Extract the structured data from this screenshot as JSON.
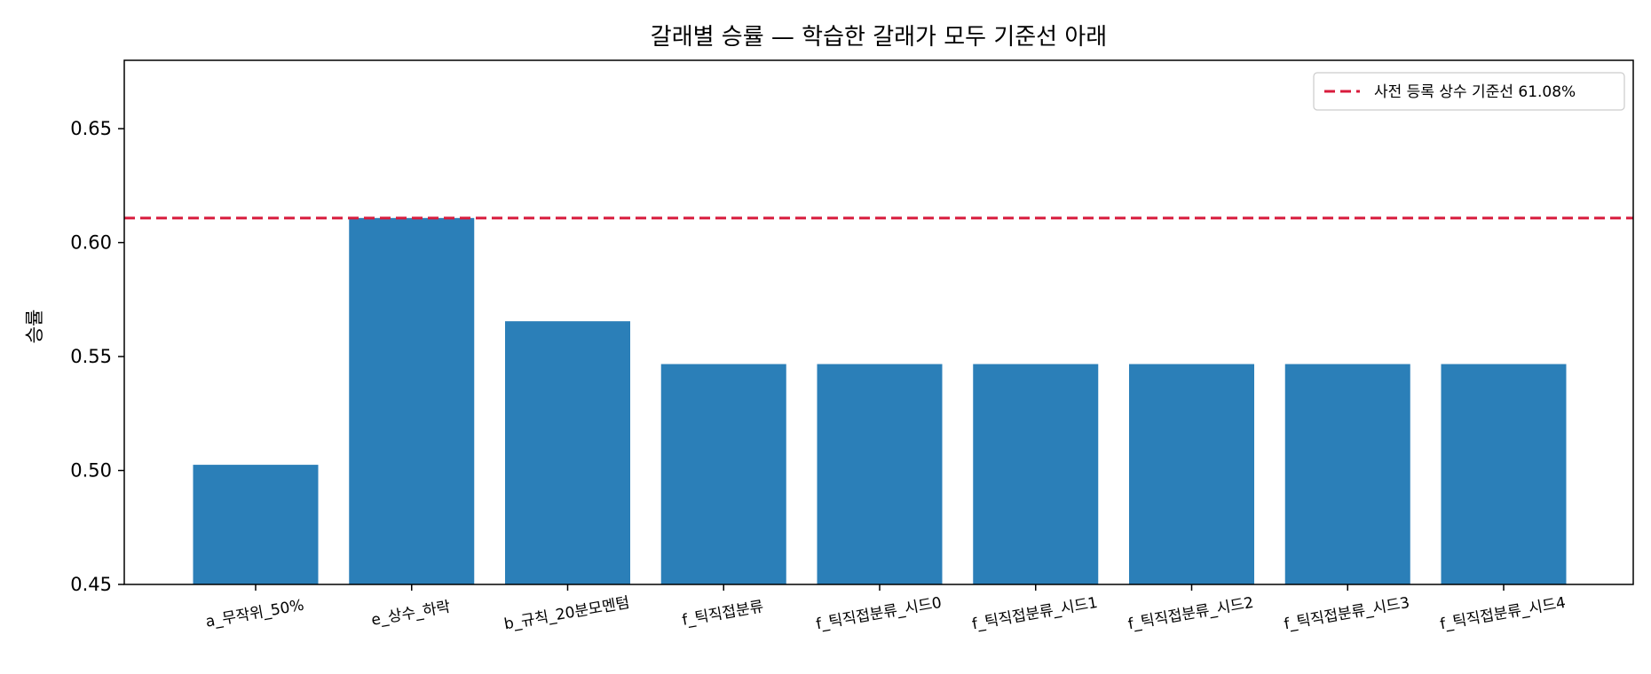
{
  "chart_data": {
    "type": "bar",
    "title": "갈래별 승률 — 학습한 갈래가 모두 기준선 아래",
    "xlabel": "",
    "ylabel": "승률",
    "ylim": [
      0.45,
      0.68
    ],
    "yticks": [
      0.45,
      0.5,
      0.55,
      0.6,
      0.65
    ],
    "ytick_labels": [
      "0.45",
      "0.50",
      "0.55",
      "0.60",
      "0.65"
    ],
    "categories": [
      "a_무작위_50%",
      "e_상수_하락",
      "b_규칙_20분모멘텀",
      "f_틱직접분류",
      "f_틱직접분류_시드0",
      "f_틱직접분류_시드1",
      "f_틱직접분류_시드2",
      "f_틱직접분류_시드3",
      "f_틱직접분류_시드4"
    ],
    "values": [
      0.5025,
      0.6108,
      0.5655,
      0.5467,
      0.5467,
      0.5467,
      0.5467,
      0.5467,
      0.5467
    ],
    "bar_color": "#2b7fb8",
    "reference_line": {
      "value": 0.6108,
      "label": "사전 등록 상수 기준선 61.08%",
      "color": "#d81b3c",
      "style": "dashed"
    },
    "legend": {
      "placement": "top-right",
      "entries": [
        "사전 등록 상수 기준선 61.08%"
      ]
    },
    "grid": false
  }
}
